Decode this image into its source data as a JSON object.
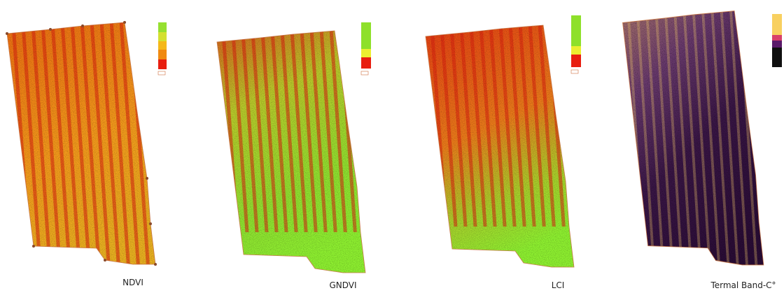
{
  "panels": [
    {
      "caption": "NDVI"
    },
    {
      "caption": "GNDVI"
    },
    {
      "caption": "LCI"
    },
    {
      "caption": "Termal Band-C°"
    }
  ]
}
